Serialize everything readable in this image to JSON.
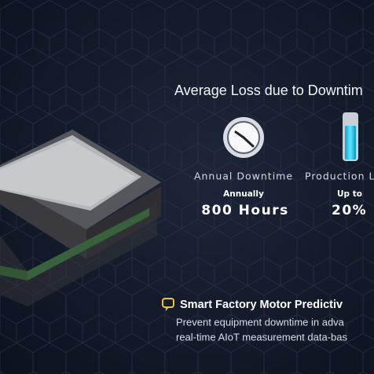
{
  "heading": "Average Loss due to Downtim",
  "stats": [
    {
      "label": "Annual Downtime",
      "qualifier": "Annually",
      "value": "800 Hours"
    },
    {
      "label": "Production L",
      "qualifier": "Up to",
      "value": "20%"
    }
  ],
  "footer": {
    "title": "Smart Factory Motor Predictiv",
    "lines": [
      "Prevent equipment downtime in adva",
      "real-time AIoT measurement data-bas"
    ]
  }
}
